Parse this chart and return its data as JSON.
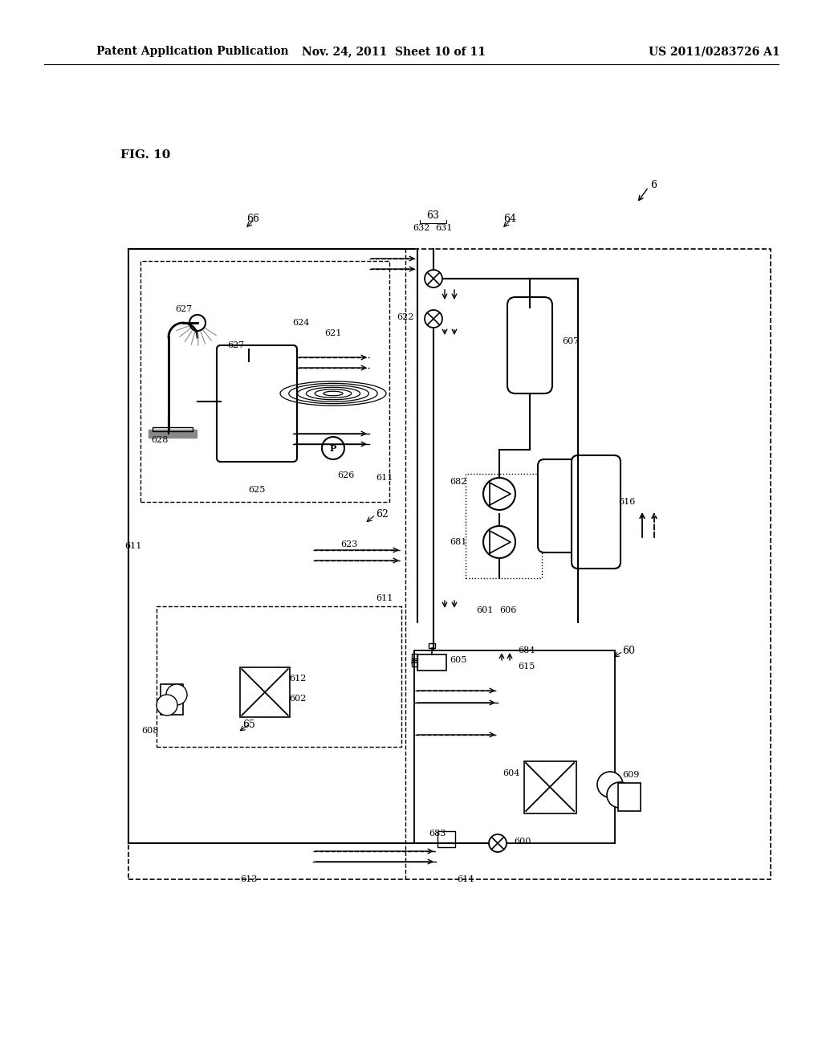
{
  "bg_color": "#ffffff",
  "lc": "#000000",
  "header_left": "Patent Application Publication",
  "header_mid": "Nov. 24, 2011  Sheet 10 of 11",
  "header_right": "US 2011/0283726 A1",
  "fig_label": "FIG. 10"
}
